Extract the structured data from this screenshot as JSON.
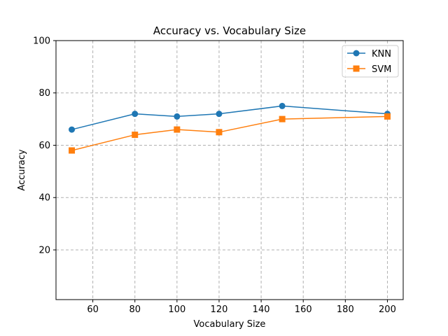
{
  "chart_data": {
    "type": "line",
    "title": "Accuracy vs. Vocabulary Size",
    "xlabel": "Vocabulary Size",
    "ylabel": "Accuracy",
    "xlim": [
      42.5,
      207.5
    ],
    "ylim": [
      1,
      100
    ],
    "xticks": [
      60,
      80,
      100,
      120,
      140,
      160,
      180,
      200
    ],
    "yticks": [
      20,
      40,
      60,
      80,
      100
    ],
    "grid": true,
    "legend_position": "top-right",
    "x": [
      50,
      80,
      100,
      120,
      150,
      200
    ],
    "series": [
      {
        "name": "KNN",
        "marker": "circle",
        "color": "#1f77b4",
        "values": [
          66,
          72,
          71,
          72,
          75,
          72
        ]
      },
      {
        "name": "SVM",
        "marker": "square",
        "color": "#ff7f0e",
        "values": [
          58,
          64,
          66,
          65,
          70,
          71
        ]
      }
    ]
  }
}
